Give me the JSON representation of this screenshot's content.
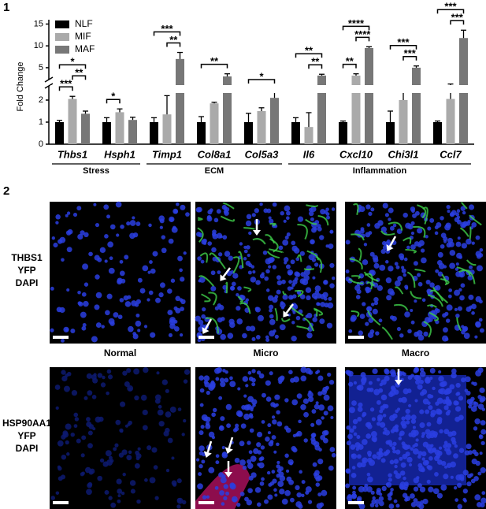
{
  "figure": {
    "panel_labels": [
      "1",
      "2"
    ],
    "chart_data": {
      "type": "bar",
      "y_label": "Fold Change",
      "categories": [
        "Thbs1",
        "Hsph1",
        "Timp1",
        "Col8a1",
        "Col5a3",
        "Il6",
        "Cxcl10",
        "Chi3l1",
        "Ccl7"
      ],
      "groups": [
        {
          "label": "Stress",
          "span": 2
        },
        {
          "label": "ECM",
          "span": 3
        },
        {
          "label": "Inflammation",
          "span": 4
        }
      ],
      "series": [
        {
          "name": "NLF",
          "color": "#000000",
          "values": [
            1.0,
            1.0,
            1.0,
            1.0,
            1.0,
            1.0,
            1.0,
            1.0,
            1.0
          ],
          "errors": [
            0.08,
            0.2,
            0.2,
            0.25,
            0.4,
            0.2,
            0.05,
            0.5,
            0.05
          ]
        },
        {
          "name": "MIF",
          "color": "#aaaaaa",
          "values": [
            2.05,
            1.45,
            1.35,
            1.85,
            1.5,
            0.78,
            3.2,
            2.0,
            2.05
          ],
          "errors": [
            0.12,
            0.15,
            0.85,
            0.05,
            0.15,
            0.65,
            0.4,
            0.5,
            0.65
          ]
        },
        {
          "name": "MAF",
          "color": "#777777",
          "values": [
            1.38,
            1.1,
            7.0,
            3.0,
            2.1,
            3.2,
            9.5,
            5.0,
            11.8
          ],
          "errors": [
            0.12,
            0.12,
            1.5,
            0.6,
            0.4,
            0.3,
            0.3,
            0.4,
            1.8
          ]
        }
      ],
      "significance": [
        {
          "category": "Thbs1",
          "from": "NLF",
          "to": "MIF",
          "label": "***"
        },
        {
          "category": "Thbs1",
          "from": "MIF",
          "to": "MAF",
          "label": "**"
        },
        {
          "category": "Thbs1",
          "from": "NLF",
          "to": "MAF",
          "label": "*"
        },
        {
          "category": "Hsph1",
          "from": "NLF",
          "to": "MIF",
          "label": "*"
        },
        {
          "category": "Timp1",
          "from": "MIF",
          "to": "MAF",
          "label": "**"
        },
        {
          "category": "Timp1",
          "from": "NLF",
          "to": "MAF",
          "label": "***"
        },
        {
          "category": "Col8a1",
          "from": "NLF",
          "to": "MAF",
          "label": "**"
        },
        {
          "category": "Col5a3",
          "from": "NLF",
          "to": "MAF",
          "label": "*"
        },
        {
          "category": "Il6",
          "from": "MIF",
          "to": "MAF",
          "label": "**"
        },
        {
          "category": "Il6",
          "from": "NLF",
          "to": "MAF",
          "label": "**"
        },
        {
          "category": "Cxcl10",
          "from": "NLF",
          "to": "MIF",
          "label": "**"
        },
        {
          "category": "Cxcl10",
          "from": "MIF",
          "to": "MAF",
          "label": "****"
        },
        {
          "category": "Cxcl10",
          "from": "NLF",
          "to": "MAF",
          "label": "****"
        },
        {
          "category": "Chi3l1",
          "from": "MIF",
          "to": "MAF",
          "label": "***"
        },
        {
          "category": "Chi3l1",
          "from": "NLF",
          "to": "MAF",
          "label": "***"
        },
        {
          "category": "Ccl7",
          "from": "MIF",
          "to": "MAF",
          "label": "***"
        },
        {
          "category": "Ccl7",
          "from": "NLF",
          "to": "MAF",
          "label": "***"
        }
      ],
      "ylim": [
        0,
        16
      ],
      "y_break": [
        2.5,
        3
      ],
      "yticks": [
        0,
        1,
        2,
        5,
        10,
        15
      ],
      "legend": "top-left"
    },
    "micrographs": {
      "columns": [
        "Normal",
        "Micro",
        "Macro"
      ],
      "rows": [
        {
          "stains": [
            {
              "label": "THBS1",
              "color": "#c00000"
            },
            {
              "label": "YFP",
              "color": "#2ca02c"
            },
            {
              "label": "DAPI",
              "color": "#1f3fa0"
            }
          ]
        },
        {
          "stains": [
            {
              "label": "HSP90AA1",
              "color": "#c00000"
            },
            {
              "label": "YFP",
              "color": "#2ca02c"
            },
            {
              "label": "DAPI",
              "color": "#1f3fa0"
            }
          ]
        }
      ]
    }
  }
}
